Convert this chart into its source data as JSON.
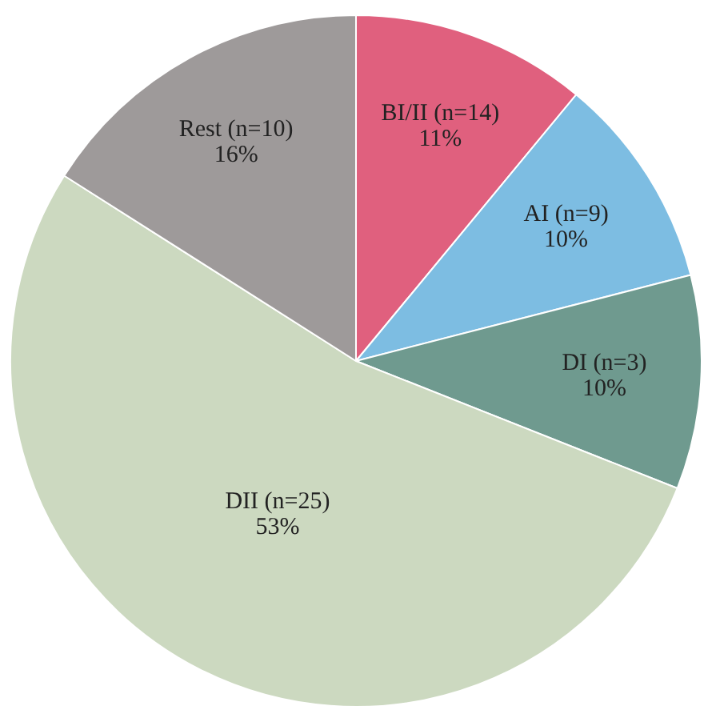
{
  "chart_data": {
    "type": "pie",
    "categories": [
      "BI/II (n=14)",
      "AI (n=9)",
      "DI (n=3)",
      "DII (n=25)",
      "Rest (n=10)"
    ],
    "values": [
      11,
      10,
      10,
      53,
      16
    ],
    "colors": [
      "#e0607e",
      "#7dbde2",
      "#6f9a8f",
      "#ccd9c0",
      "#9e9a9a"
    ],
    "value_labels": [
      "11%",
      "10%",
      "10%",
      "53%",
      "16%"
    ],
    "legend": false
  }
}
